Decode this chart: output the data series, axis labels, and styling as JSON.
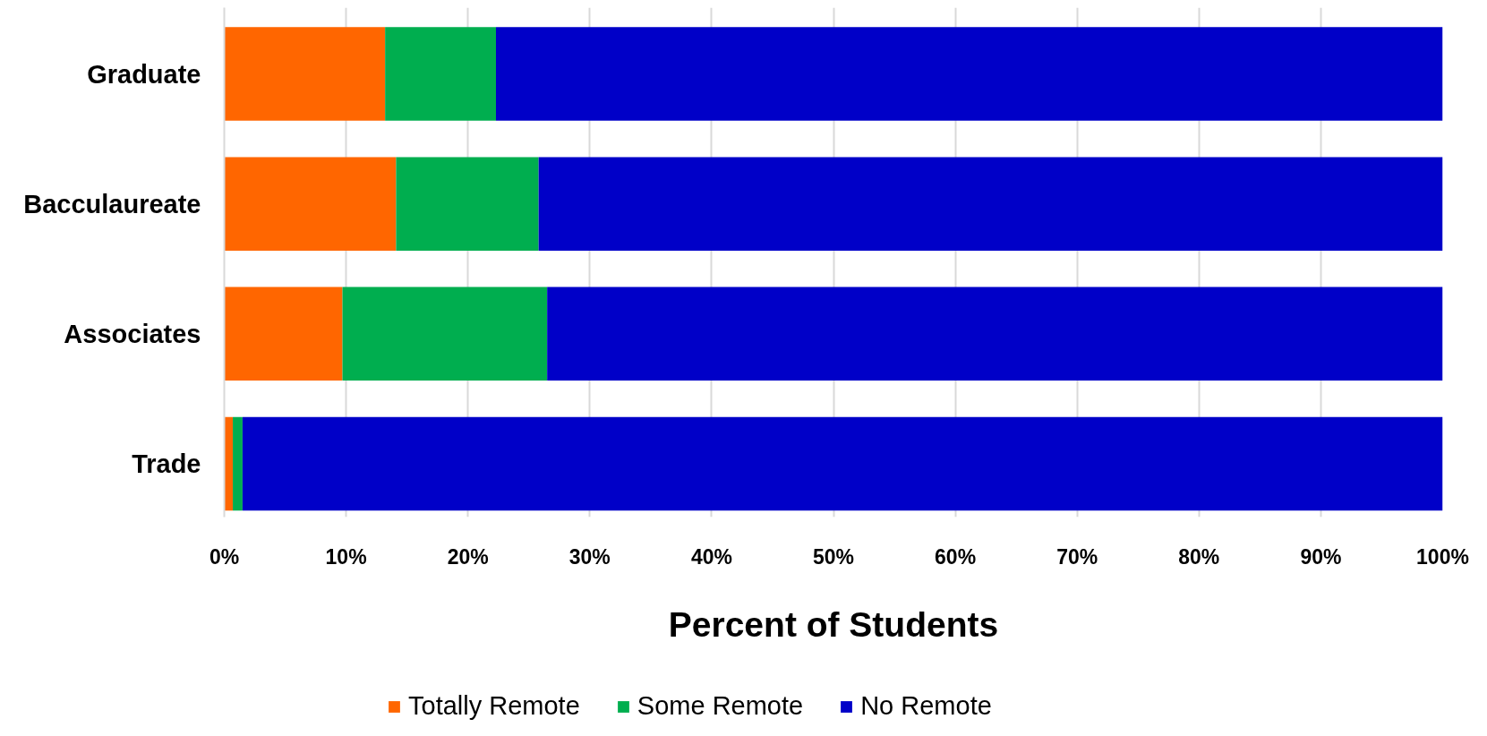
{
  "chart_data": {
    "type": "bar",
    "orientation": "horizontal",
    "stacked": true,
    "categories": [
      "Graduate",
      "Bacculaureate",
      "Associates",
      "Trade"
    ],
    "series": [
      {
        "name": "Totally Remote",
        "color": "#ff6600",
        "values": [
          13.2,
          14.1,
          9.7,
          0.7
        ]
      },
      {
        "name": "Some Remote",
        "color": "#00ae4f",
        "values": [
          9.1,
          11.7,
          16.8,
          0.8
        ]
      },
      {
        "name": "No Remote",
        "color": "#0000c8",
        "values": [
          77.7,
          74.2,
          73.5,
          98.5
        ]
      }
    ],
    "xlabel": "Percent of Students",
    "xlim": [
      0,
      100
    ],
    "xticks": [
      {
        "value": 0,
        "label": "0%"
      },
      {
        "value": 10,
        "label": "10%"
      },
      {
        "value": 20,
        "label": "20%"
      },
      {
        "value": 30,
        "label": "30%"
      },
      {
        "value": 40,
        "label": "40%"
      },
      {
        "value": 50,
        "label": "50%"
      },
      {
        "value": 60,
        "label": "60%"
      },
      {
        "value": 70,
        "label": "70%"
      },
      {
        "value": 80,
        "label": "80%"
      },
      {
        "value": 90,
        "label": "90%"
      },
      {
        "value": 100,
        "label": "100%"
      }
    ],
    "grid": "x",
    "legend": "bottom"
  }
}
